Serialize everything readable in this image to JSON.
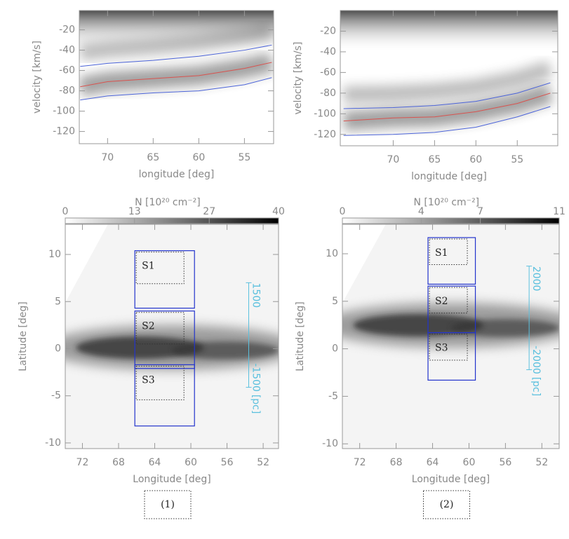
{
  "chart_data": [
    {
      "type": "line",
      "xlabel": "longitude [deg]",
      "ylabel": "velocity [km/s]",
      "xlim": [
        73.1,
        51.8
      ],
      "ylim": [
        -132,
        -1
      ],
      "xticks": [
        70,
        65,
        60,
        55
      ],
      "yticks": [
        -120,
        -100,
        -80,
        -60,
        -40,
        -20
      ],
      "x": [
        73,
        70,
        65,
        60,
        55,
        52
      ],
      "series": [
        {
          "color": "#4b63d8",
          "values": [
            -56,
            -53,
            -50,
            -46,
            -40,
            -35
          ]
        },
        {
          "color": "#d9534f",
          "values": [
            -76,
            -71,
            -68,
            -65,
            -58,
            -52
          ]
        },
        {
          "color": "#4b63d8",
          "values": [
            -89,
            -85,
            -82,
            -80,
            -74,
            -67
          ]
        }
      ]
    },
    {
      "type": "line",
      "xlabel": "longitude [deg]",
      "ylabel": "velocity [km/s]",
      "xlim": [
        76.4,
        50.1
      ],
      "ylim": [
        -131,
        0
      ],
      "xticks": [
        70,
        65,
        60,
        55
      ],
      "yticks": [
        -120,
        -100,
        -80,
        -60,
        -40,
        -20
      ],
      "x": [
        76,
        70,
        65,
        60,
        55,
        51
      ],
      "series": [
        {
          "color": "#4b63d8",
          "values": [
            -95,
            -94,
            -92,
            -88,
            -80,
            -70
          ]
        },
        {
          "color": "#d9534f",
          "values": [
            -107,
            -104,
            -103,
            -98,
            -90,
            -80
          ]
        },
        {
          "color": "#4b63d8",
          "values": [
            -121,
            -120,
            -118,
            -113,
            -103,
            -93
          ]
        }
      ]
    },
    {
      "type": "map",
      "xlabel": "Longitude [deg]",
      "ylabel": "Latitude [deg]",
      "xlim": [
        73.9,
        50.3
      ],
      "ylim": [
        -10.6,
        13.2
      ],
      "xticks": [
        72,
        68,
        64,
        60,
        56,
        52
      ],
      "yticks": [
        -10,
        -5,
        0,
        5,
        10
      ],
      "colorbar_label": "N [10²⁰ cm⁻²]",
      "cblim": [
        0,
        40
      ],
      "cbticks": [
        0,
        13,
        27,
        40
      ],
      "regions": [
        {
          "name": "S1",
          "lon": [
            66.2,
            59.6
          ],
          "lat": [
            4.3,
            10.4
          ]
        },
        {
          "name": "S2",
          "lon": [
            66.2,
            59.6
          ],
          "lat": [
            -2.1,
            4.0
          ]
        },
        {
          "name": "S3",
          "lon": [
            66.2,
            59.6
          ],
          "lat": [
            -8.2,
            -1.7
          ]
        }
      ],
      "scalebar": {
        "lon": 53.6,
        "lat": [
          7.0,
          -4.1
        ],
        "top_label": "1500",
        "bottom_label": "-1500",
        "unit": "[pc]"
      },
      "panel_label": "(1)"
    },
    {
      "type": "map",
      "xlabel": "Longitude [deg]",
      "ylabel": "Latitude [deg]",
      "xlim": [
        73.9,
        50.1
      ],
      "ylim": [
        -10.5,
        13.1
      ],
      "xticks": [
        72,
        68,
        64,
        60,
        56,
        52
      ],
      "yticks": [
        -10,
        -5,
        0,
        5,
        10
      ],
      "colorbar_label": "N [10²⁰ cm⁻²]",
      "cblim": [
        0,
        11
      ],
      "cbticks": [
        0,
        4,
        7,
        11
      ],
      "regions": [
        {
          "name": "S1",
          "lon": [
            64.5,
            59.3
          ],
          "lat": [
            6.8,
            11.7
          ]
        },
        {
          "name": "S2",
          "lon": [
            64.5,
            59.3
          ],
          "lat": [
            1.7,
            6.6
          ]
        },
        {
          "name": "S3",
          "lon": [
            64.5,
            59.3
          ],
          "lat": [
            -3.3,
            1.7
          ]
        }
      ],
      "scalebar": {
        "lon": 53.4,
        "lat": [
          8.7,
          -2.2
        ],
        "top_label": "2000",
        "bottom_label": "-2000",
        "unit": "[pc]"
      },
      "panel_label": "(2)"
    }
  ]
}
